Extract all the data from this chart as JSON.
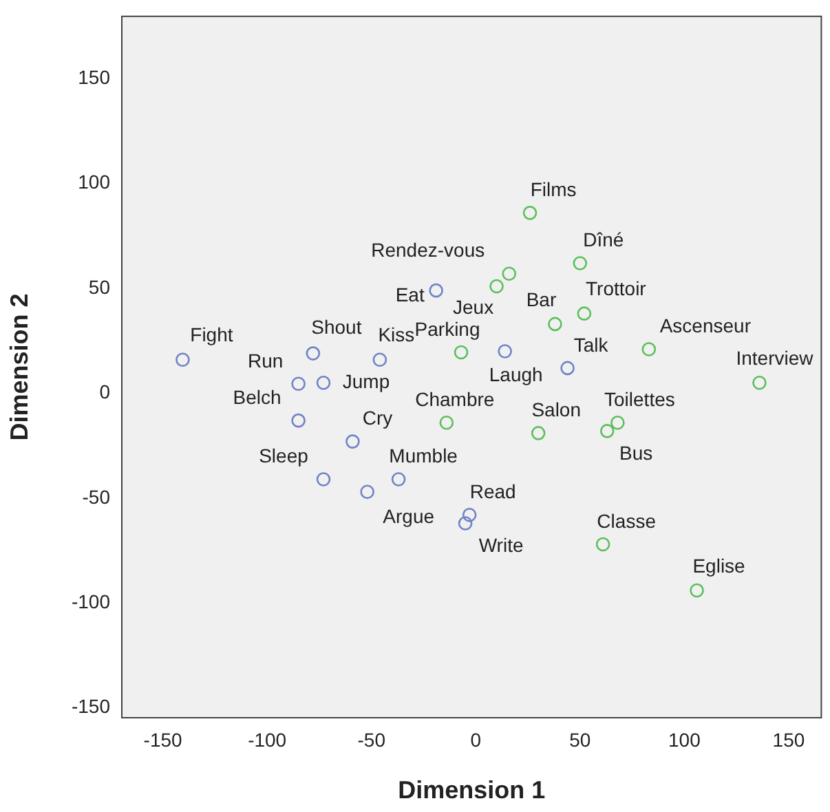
{
  "chart_data": {
    "type": "scatter",
    "xlabel": "Dimension 1",
    "ylabel": "Dimension 2",
    "xlim": [
      -170,
      166
    ],
    "ylim": [
      -155,
      180
    ],
    "xticks": [
      -150,
      -100,
      -50,
      0,
      50,
      100,
      150
    ],
    "yticks": [
      -150,
      -100,
      -50,
      0,
      50,
      100,
      150
    ],
    "grid": false,
    "legend": false,
    "marker": "circle",
    "series": [
      {
        "color": "#6f83c6",
        "x": [
          -140.5,
          -78,
          -85,
          -73,
          -85,
          -46,
          -19,
          -59,
          -73,
          -37,
          -52,
          -3,
          -5,
          44,
          14
        ],
        "values": [
          16,
          19,
          4.5,
          5,
          -13,
          16,
          49,
          -23,
          -41,
          -41,
          -47,
          -58,
          -62,
          12,
          20
        ]
      },
      {
        "color": "#5cbf5c",
        "x": [
          26,
          50,
          16,
          10,
          52,
          38,
          -7,
          83,
          136,
          -14,
          68,
          30,
          63,
          61,
          106
        ],
        "values": [
          86,
          62,
          57,
          51,
          38,
          33,
          19.5,
          21,
          5,
          -14,
          -14,
          -19,
          -18,
          -72,
          -94
        ]
      }
    ],
    "annotations": [
      {
        "text": "Fight",
        "x": -140.5,
        "y": 16
      },
      {
        "text": "Shout",
        "x": -78,
        "y": 19
      },
      {
        "text": "Run",
        "x": -85,
        "y": 4.5
      },
      {
        "text": "Jump",
        "x": -73,
        "y": 5
      },
      {
        "text": "Belch",
        "x": -85,
        "y": -13
      },
      {
        "text": "Kiss",
        "x": -46,
        "y": 16
      },
      {
        "text": "Eat",
        "x": -19,
        "y": 49
      },
      {
        "text": "Cry",
        "x": -59,
        "y": -23
      },
      {
        "text": "Sleep",
        "x": -73,
        "y": -41
      },
      {
        "text": "Mumble",
        "x": -37,
        "y": -41
      },
      {
        "text": "Argue",
        "x": -52,
        "y": -47
      },
      {
        "text": "Read",
        "x": -3,
        "y": -58
      },
      {
        "text": "Write",
        "x": -5,
        "y": -62
      },
      {
        "text": "Talk",
        "x": 44,
        "y": 12
      },
      {
        "text": "Laugh",
        "x": 14,
        "y": 20
      },
      {
        "text": "Films",
        "x": 26,
        "y": 86
      },
      {
        "text": "Dîné",
        "x": 50,
        "y": 62
      },
      {
        "text": "Rendez-vous",
        "x": 16,
        "y": 57
      },
      {
        "text": "Jeux",
        "x": 10,
        "y": 51
      },
      {
        "text": "Trottoir",
        "x": 52,
        "y": 38
      },
      {
        "text": "Bar",
        "x": 38,
        "y": 33
      },
      {
        "text": "Parking",
        "x": -7,
        "y": 19.5
      },
      {
        "text": "Ascenseur",
        "x": 83,
        "y": 21
      },
      {
        "text": "Interview",
        "x": 136,
        "y": 5
      },
      {
        "text": "Chambre",
        "x": -14,
        "y": -14
      },
      {
        "text": "Toilettes",
        "x": 68,
        "y": -14
      },
      {
        "text": "Salon",
        "x": 30,
        "y": -19
      },
      {
        "text": "Bus",
        "x": 63,
        "y": -18
      },
      {
        "text": "Classe",
        "x": 61,
        "y": -72
      },
      {
        "text": "Eglise",
        "x": 106,
        "y": -94
      }
    ]
  }
}
